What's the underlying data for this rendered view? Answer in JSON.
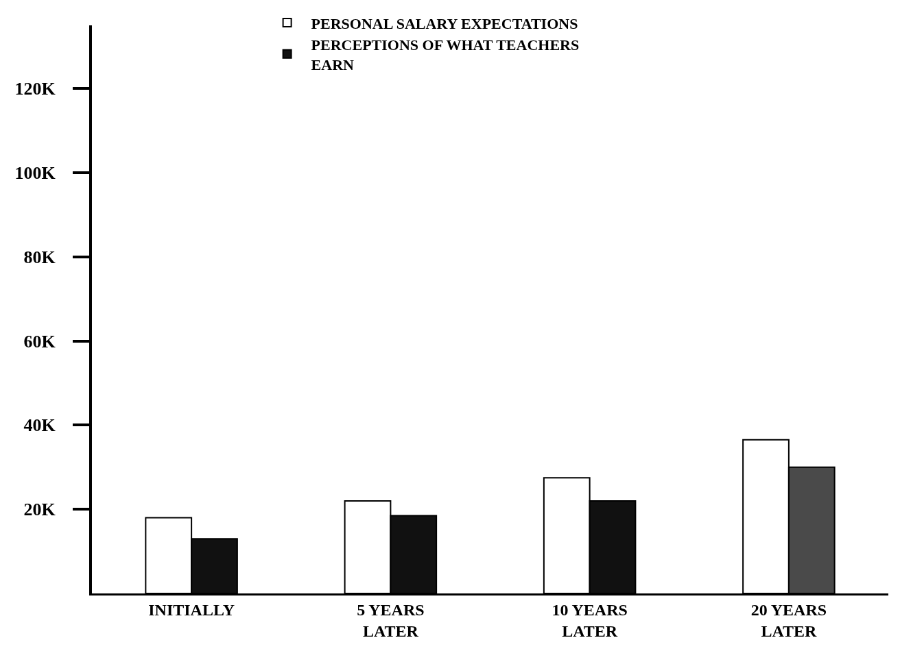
{
  "chart_data": {
    "type": "bar",
    "categories": [
      "INITIALLY",
      "5 YEARS\nLATER",
      "10 YEARS\nLATER",
      "20 YEARS\nLATER"
    ],
    "series": [
      {
        "name": "PERSONAL SALARY EXPECTATIONS",
        "color": "#ffffff",
        "values": [
          18000,
          22000,
          27500,
          36500
        ]
      },
      {
        "name": "PERCEPTIONS OF WHAT TEACHERS\nEARN",
        "color": "#111111",
        "colors": [
          null,
          null,
          null,
          "#4a4a4a"
        ],
        "values": [
          13000,
          18500,
          22000,
          30000
        ]
      }
    ],
    "ylim": [
      0,
      135000
    ],
    "yticks": [
      {
        "value": 20000,
        "label": "20K"
      },
      {
        "value": 40000,
        "label": "40K"
      },
      {
        "value": 60000,
        "label": "60K"
      },
      {
        "value": 80000,
        "label": "80K"
      },
      {
        "value": 100000,
        "label": "100K"
      },
      {
        "value": 120000,
        "label": "120K"
      }
    ],
    "legend": "top"
  }
}
